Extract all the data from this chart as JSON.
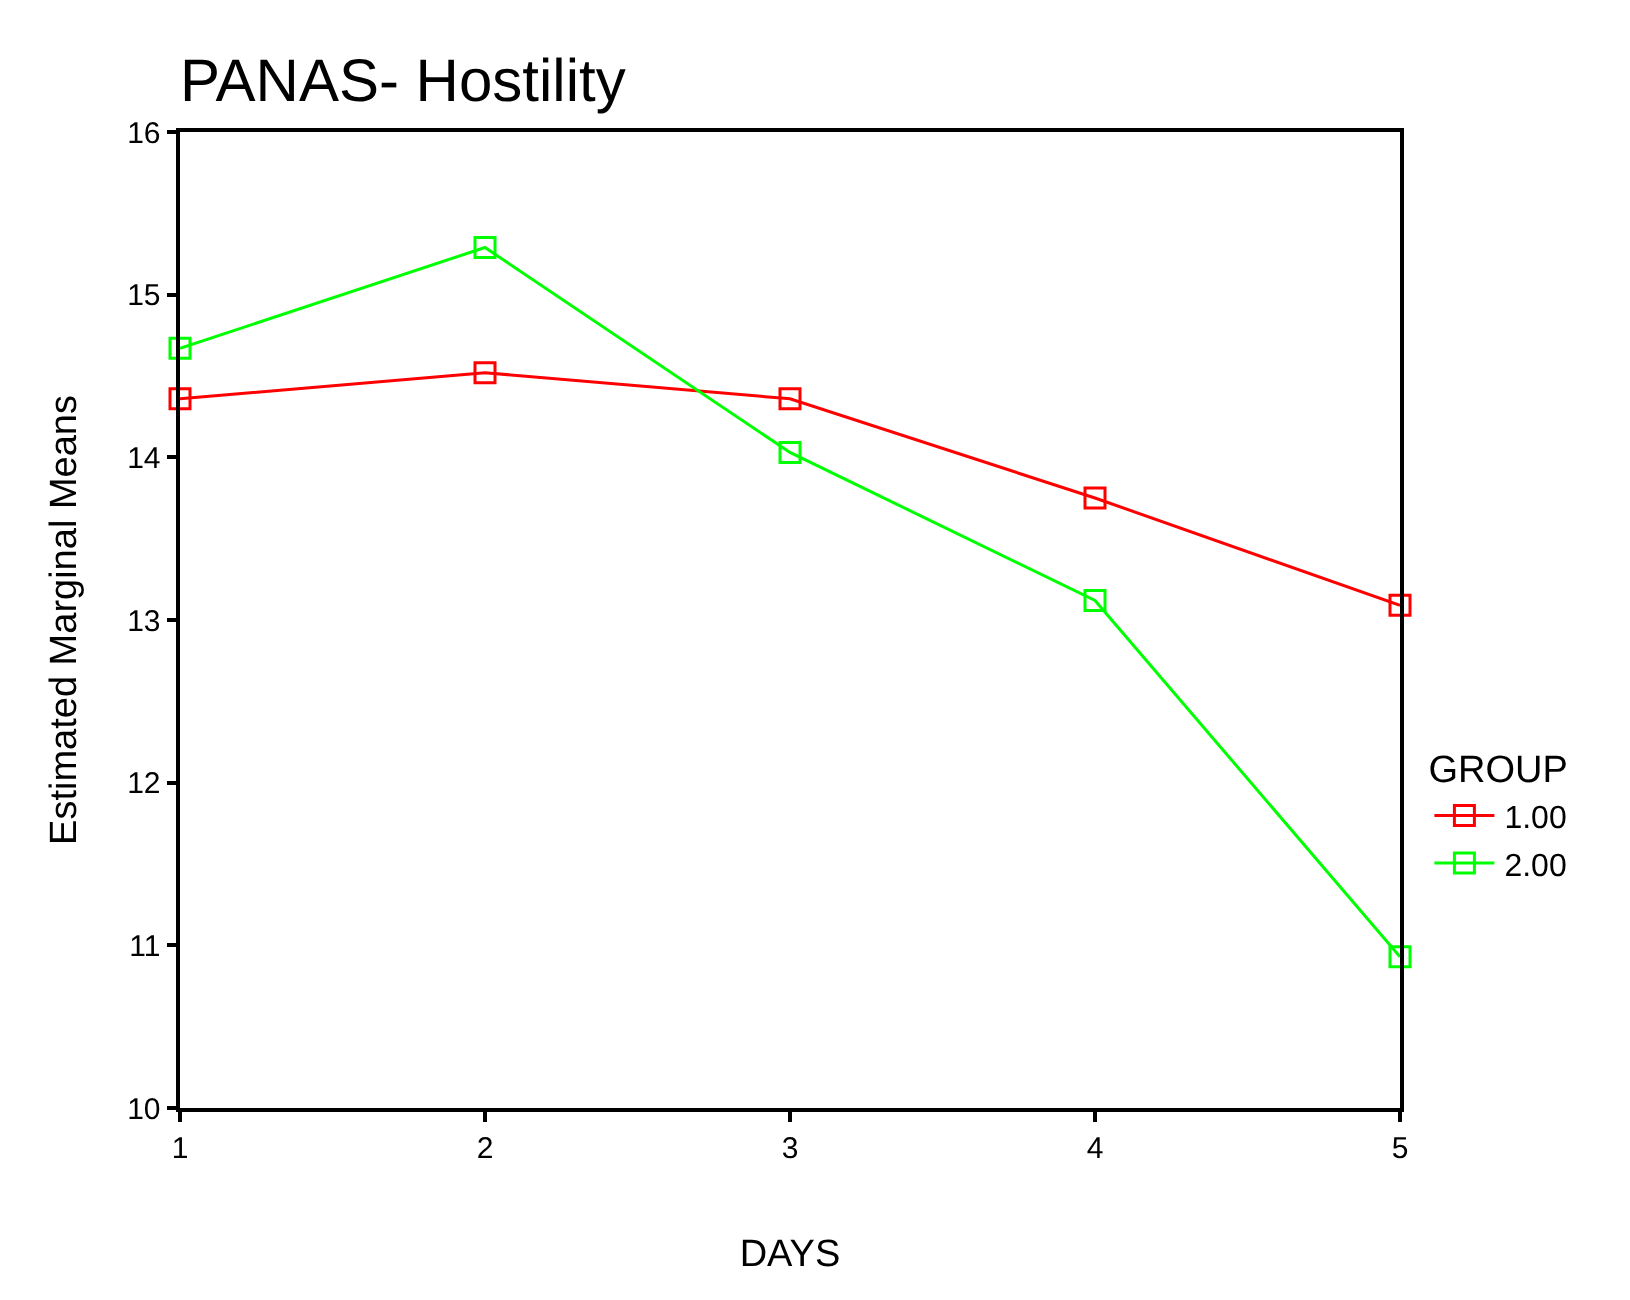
{
  "chart_data": {
    "type": "line",
    "title": "PANAS- Hostility",
    "xlabel": "DAYS",
    "ylabel": "Estimated Marginal Means",
    "legend_title": "GROUP",
    "x": [
      1,
      2,
      3,
      4,
      5
    ],
    "series": [
      {
        "name": "1.00",
        "color": "#ff0000",
        "values": [
          14.36,
          14.52,
          14.36,
          13.75,
          13.09
        ]
      },
      {
        "name": "2.00",
        "color": "#00ff00",
        "values": [
          14.67,
          15.29,
          14.03,
          13.12,
          10.93
        ]
      }
    ],
    "xlim": [
      1,
      5
    ],
    "xticks": [
      1,
      2,
      3,
      4,
      5
    ],
    "ylim": [
      10,
      16
    ],
    "yticks": [
      10,
      11,
      12,
      13,
      14,
      15,
      16
    ],
    "grid": false,
    "legend": "right",
    "marker": "square",
    "line_style": "solid"
  }
}
